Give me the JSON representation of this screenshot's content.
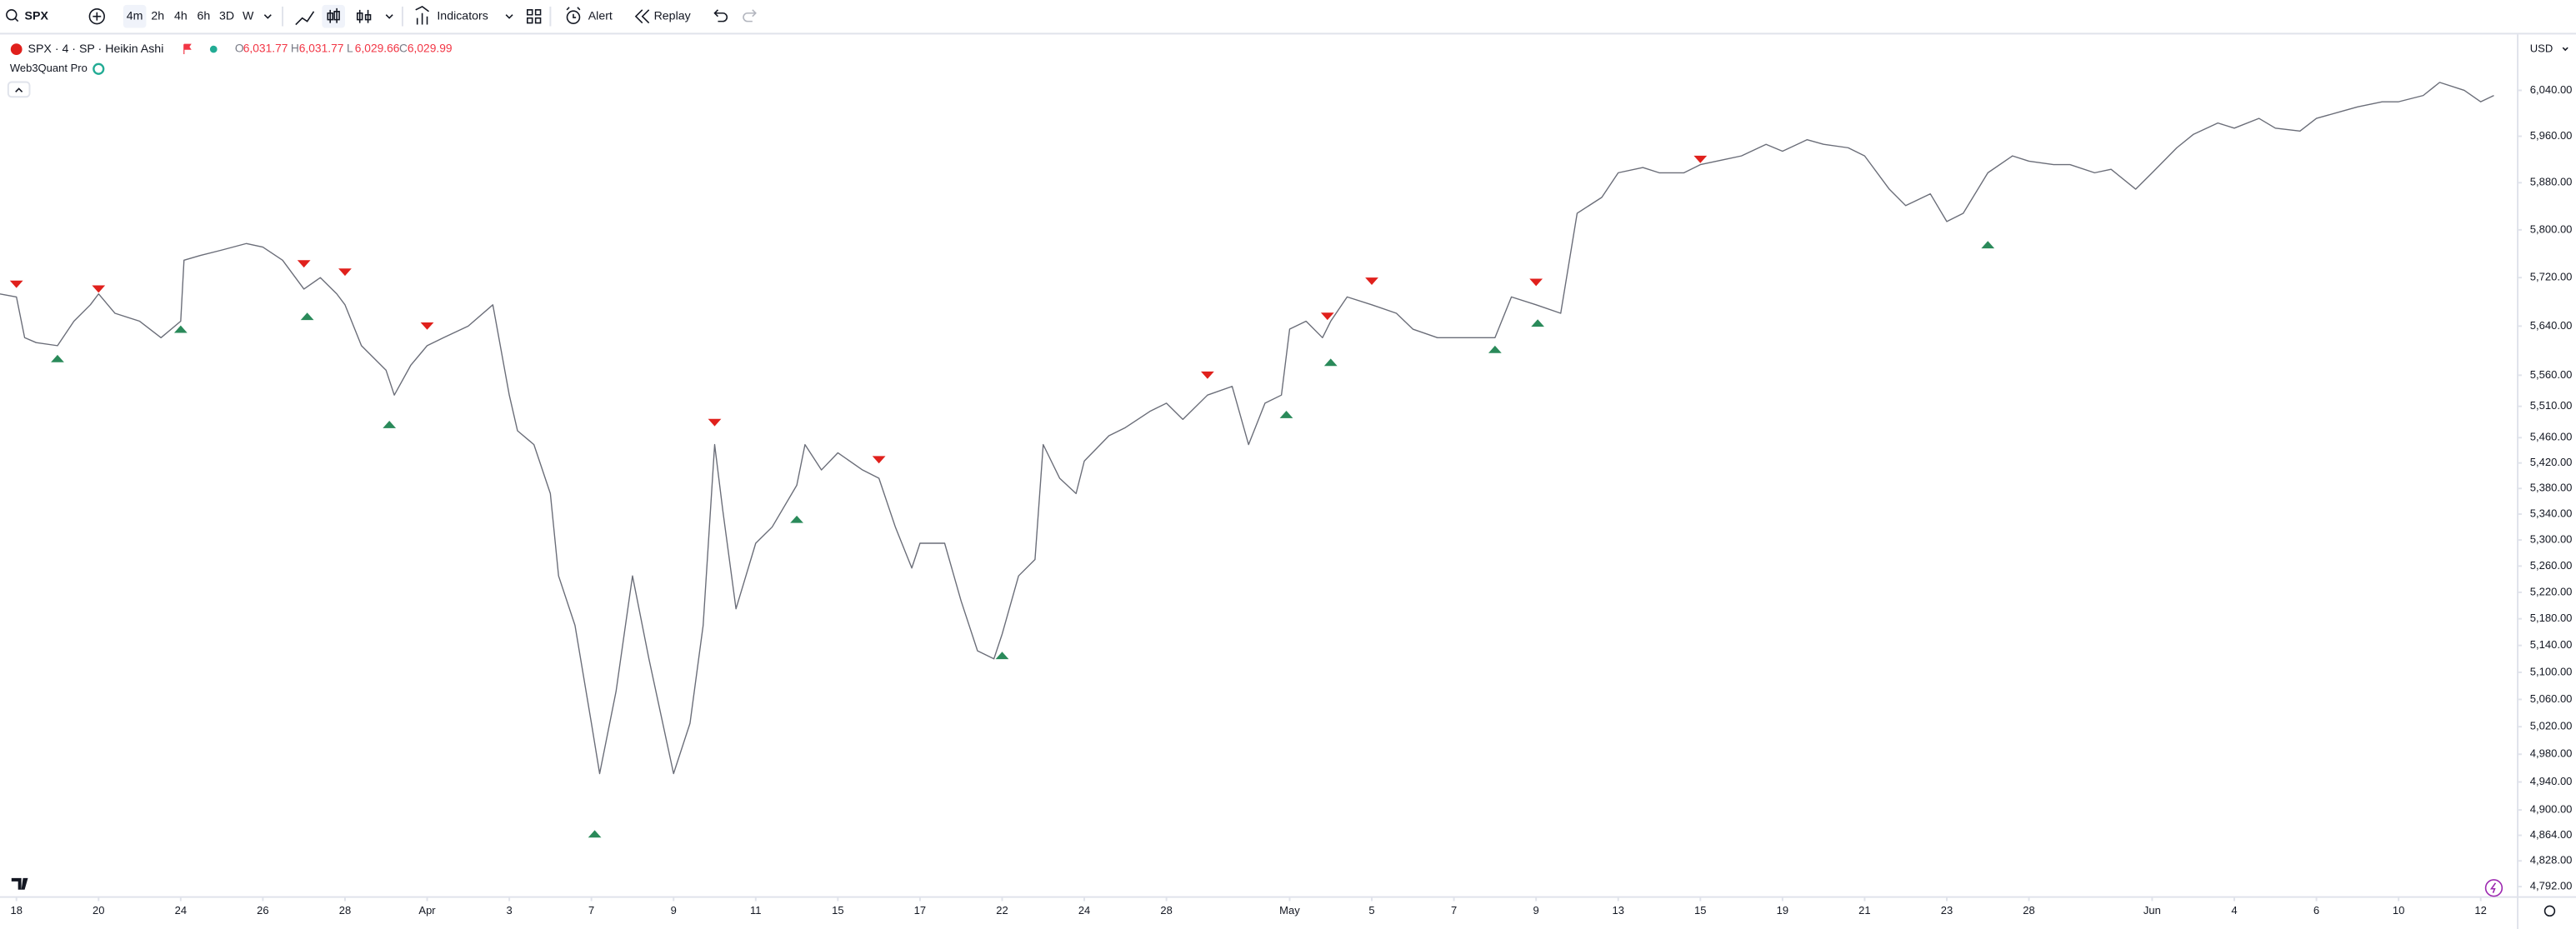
{
  "toolbar": {
    "symbol": "SPX",
    "intervals": [
      "4m",
      "2h",
      "4h",
      "6h",
      "3D",
      "W"
    ],
    "indicators": "Indicators",
    "alert": "Alert",
    "replay": "Replay"
  },
  "legend": {
    "title": "SPX · 4 · SP · Heikin Ashi",
    "ohlc": [
      {
        "label": "O",
        "value": "6,031.77"
      },
      {
        "label": "H",
        "value": "6,031.77"
      },
      {
        "label": "L",
        "value": "6,029.66"
      },
      {
        "label": "C",
        "value": "6,029.99"
      }
    ],
    "indicator": "Web3Quant Pro",
    "currency": "USD"
  },
  "chart_data": {
    "type": "line",
    "log_scale": true,
    "xlim": [
      -0.4,
      60.88
    ],
    "ylim": [
      4781,
      6136
    ],
    "xticks": [
      {
        "value": 0,
        "label": "18"
      },
      {
        "value": 2,
        "label": "20"
      },
      {
        "value": 4,
        "label": "24"
      },
      {
        "value": 6,
        "label": "26"
      },
      {
        "value": 8,
        "label": "28"
      },
      {
        "value": 10,
        "label": "Apr"
      },
      {
        "value": 12,
        "label": "3"
      },
      {
        "value": 14,
        "label": "7"
      },
      {
        "value": 16,
        "label": "9"
      },
      {
        "value": 18,
        "label": "11"
      },
      {
        "value": 20,
        "label": "15"
      },
      {
        "value": 22,
        "label": "17"
      },
      {
        "value": 24,
        "label": "22"
      },
      {
        "value": 26,
        "label": "24"
      },
      {
        "value": 28,
        "label": "28"
      },
      {
        "value": 31,
        "label": "May"
      },
      {
        "value": 33,
        "label": "5"
      },
      {
        "value": 35,
        "label": "7"
      },
      {
        "value": 37,
        "label": "9"
      },
      {
        "value": 39,
        "label": "13"
      },
      {
        "value": 41,
        "label": "15"
      },
      {
        "value": 43,
        "label": "19"
      },
      {
        "value": 45,
        "label": "21"
      },
      {
        "value": 47,
        "label": "23"
      },
      {
        "value": 49,
        "label": "28"
      },
      {
        "value": 52,
        "label": "Jun"
      },
      {
        "value": 54,
        "label": "4"
      },
      {
        "value": 56,
        "label": "6"
      },
      {
        "value": 58,
        "label": "10"
      },
      {
        "value": 60,
        "label": "12"
      }
    ],
    "yticks": [
      {
        "value": 6040,
        "label": "6,040.00"
      },
      {
        "value": 5960,
        "label": "5,960.00"
      },
      {
        "value": 5880,
        "label": "5,880.00"
      },
      {
        "value": 5800,
        "label": "5,800.00"
      },
      {
        "value": 5720,
        "label": "5,720.00"
      },
      {
        "value": 5640,
        "label": "5,640.00"
      },
      {
        "value": 5560,
        "label": "5,560.00"
      },
      {
        "value": 5510,
        "label": "5,510.00"
      },
      {
        "value": 5460,
        "label": "5,460.00"
      },
      {
        "value": 5420,
        "label": "5,420.00"
      },
      {
        "value": 5380,
        "label": "5,380.00"
      },
      {
        "value": 5340,
        "label": "5,340.00"
      },
      {
        "value": 5300,
        "label": "5,300.00"
      },
      {
        "value": 5260,
        "label": "5,260.00"
      },
      {
        "value": 5220,
        "label": "5,220.00"
      },
      {
        "value": 5180,
        "label": "5,180.00"
      },
      {
        "value": 5140,
        "label": "5,140.00"
      },
      {
        "value": 5100,
        "label": "5,100.00"
      },
      {
        "value": 5060,
        "label": "5,060.00"
      },
      {
        "value": 5020,
        "label": "5,020.00"
      },
      {
        "value": 4980,
        "label": "4,980.00"
      },
      {
        "value": 4940,
        "label": "4,940.00"
      },
      {
        "value": 4900,
        "label": "4,900.00"
      },
      {
        "value": 4864,
        "label": "4,864.00"
      },
      {
        "value": 4828,
        "label": "4,828.00"
      },
      {
        "value": 4792,
        "label": "4,792.00"
      }
    ],
    "grid": false,
    "series": [
      {
        "color": "#6a6d78",
        "x": [
          -0.4,
          0,
          0.2,
          0.48,
          1,
          1.4,
          1.8,
          2,
          2.4,
          3,
          3.52,
          4,
          4.08,
          4.48,
          5,
          5.6,
          6,
          6.48,
          7,
          7.4,
          7.8,
          8,
          8.4,
          9,
          9.2,
          9.6,
          10,
          10.4,
          11,
          11.6,
          12,
          12.2,
          12.6,
          13,
          13.2,
          13.6,
          14,
          14.2,
          14.6,
          15,
          15.4,
          16,
          16.4,
          16.72,
          17,
          17.2,
          17.52,
          18,
          18.4,
          19,
          19.2,
          19.6,
          20,
          20.6,
          21,
          21.4,
          21.8,
          22,
          22.6,
          23,
          23.4,
          23.8,
          24,
          24.4,
          24.8,
          25,
          25.4,
          25.8,
          26,
          26.6,
          27,
          27.6,
          28,
          28.4,
          29,
          29.6,
          30,
          30.4,
          30.8,
          31,
          31.4,
          31.8,
          32,
          32.4,
          33,
          33.6,
          34,
          34.6,
          35,
          35.6,
          36,
          36.4,
          37,
          37.6,
          38,
          38.6,
          39,
          39.6,
          40,
          40.6,
          41,
          41.6,
          42,
          42.6,
          43,
          43.6,
          44,
          44.6,
          45,
          45.6,
          46,
          46.6,
          47,
          47.4,
          48,
          48.6,
          49,
          49.6,
          50,
          50.6,
          51,
          51.6,
          52,
          52.6,
          53,
          53.6,
          54,
          54.6,
          55,
          55.6,
          56,
          56.6,
          57,
          57.6,
          58,
          58.6,
          59,
          59.6,
          60,
          60.32
        ],
        "values": [
          5693,
          5688,
          5621,
          5613,
          5608,
          5648,
          5675,
          5693,
          5661,
          5648,
          5621,
          5648,
          5749,
          5757,
          5766,
          5777,
          5771,
          5749,
          5701,
          5720,
          5693,
          5675,
          5608,
          5568,
          5528,
          5576,
          5608,
          5621,
          5640,
          5675,
          5528,
          5471,
          5449,
          5372,
          5245,
          5170,
          5025,
          4952,
          5072,
          5245,
          5120,
          4952,
          5025,
          5170,
          5449,
          5345,
          5195,
          5295,
          5320,
          5385,
          5449,
          5409,
          5436,
          5409,
          5396,
          5320,
          5257,
          5295,
          5295,
          5207,
          5132,
          5120,
          5157,
          5245,
          5270,
          5449,
          5396,
          5372,
          5423,
          5463,
          5476,
          5502,
          5515,
          5489,
          5528,
          5542,
          5449,
          5515,
          5528,
          5635,
          5648,
          5621,
          5648,
          5688,
          5675,
          5661,
          5635,
          5621,
          5621,
          5621,
          5621,
          5688,
          5675,
          5661,
          5828,
          5855,
          5897,
          5906,
          5897,
          5897,
          5911,
          5920,
          5926,
          5946,
          5934,
          5954,
          5946,
          5940,
          5926,
          5869,
          5841,
          5861,
          5814,
          5828,
          5897,
          5926,
          5917,
          5911,
          5911,
          5897,
          5903,
          5869,
          5897,
          5940,
          5963,
          5983,
          5974,
          5991,
          5974,
          5969,
          5991,
          6003,
          6011,
          6020,
          6020,
          6031,
          6054,
          6040,
          6020,
          6031
        ]
      }
    ],
    "sell_signals": {
      "color": "#e0201c",
      "x": [
        0,
        2,
        7,
        8,
        10,
        17,
        21,
        29,
        31.92,
        33,
        37,
        41
      ],
      "values": [
        5709,
        5701,
        5743,
        5729,
        5640,
        5484,
        5425,
        5560,
        5656,
        5714,
        5712,
        5920
      ]
    },
    "buy_signals": {
      "color": "#2a8a5a",
      "x": [
        1,
        4,
        7.08,
        9.08,
        14.08,
        19,
        24,
        30.92,
        32,
        36,
        37.04,
        48
      ],
      "values": [
        5587,
        5635,
        5656,
        5481,
        4866,
        5332,
        5125,
        5497,
        5581,
        5602,
        5645,
        5775
      ]
    }
  }
}
